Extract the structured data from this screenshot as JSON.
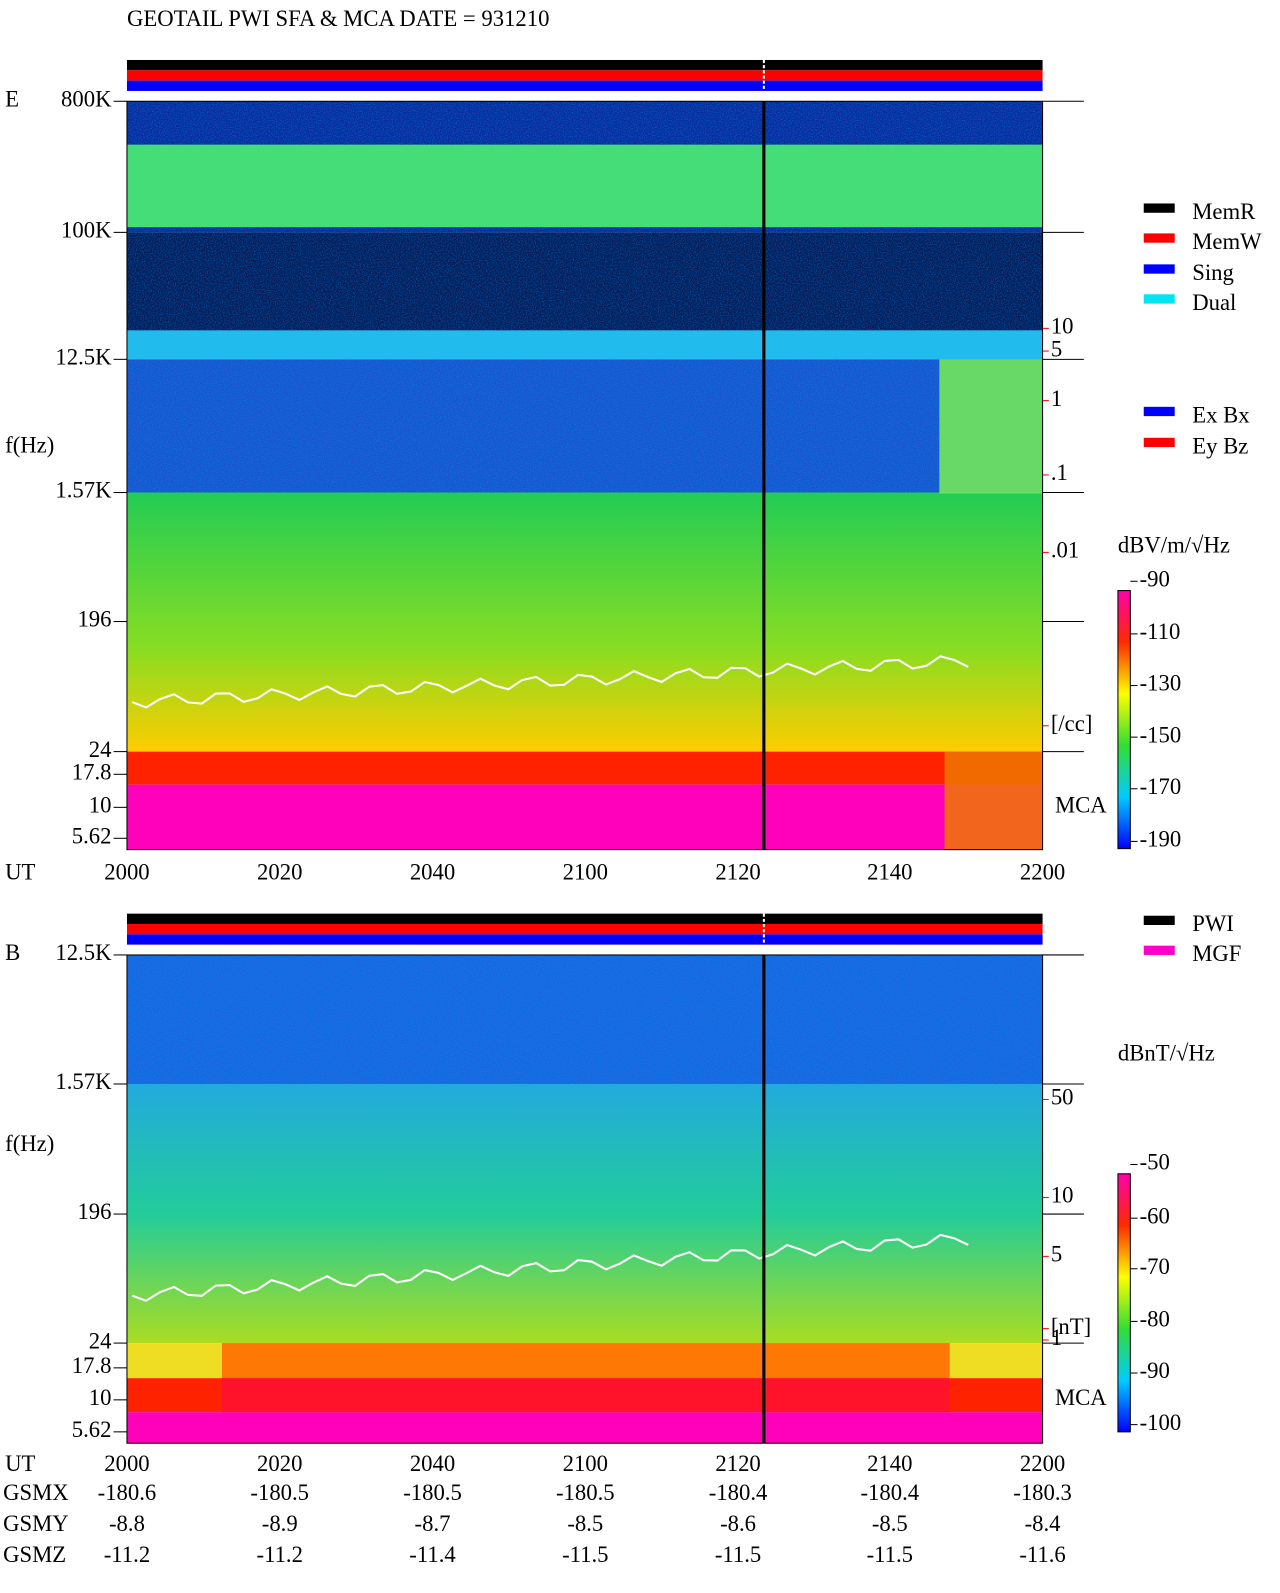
{
  "title": "GEOTAIL  PWI SFA & MCA   DATE = 931210",
  "panels": [
    {
      "label": "E",
      "axis_label": "f(Hz)",
      "time_label": "UT",
      "freq_ticks": [
        "800K",
        "100K",
        "12.5K",
        "1.57K",
        "196",
        "24",
        "17.8",
        "10",
        "5.62"
      ],
      "time_ticks": [
        "2000",
        "2020",
        "2040",
        "2100",
        "2120",
        "2140",
        "2200"
      ],
      "mca_label": "MCA",
      "legend": [
        {
          "name": "MemR",
          "color": "#000000"
        },
        {
          "name": "MemW",
          "color": "#ff0000"
        },
        {
          "name": "Sing",
          "color": "#0000ff"
        },
        {
          "name": "Dual",
          "color": "#00e5ee"
        },
        {
          "name": "Ex Bx",
          "color": "#0000ff"
        },
        {
          "name": "Ey Bz",
          "color": "#ff0000"
        }
      ],
      "unit": "dBV/m/√Hz",
      "colorbar_ticks": [
        "-90",
        "-110",
        "-130",
        "-150",
        "-170",
        "-190"
      ],
      "red_scale": [
        "10",
        "5",
        "1",
        ".1",
        ".01",
        "[/cc]"
      ]
    },
    {
      "label": "B",
      "axis_label": "f(Hz)",
      "time_label": "UT",
      "freq_ticks": [
        "12.5K",
        "1.57K",
        "196",
        "24",
        "17.8",
        "10",
        "5.62"
      ],
      "time_ticks": [
        "2000",
        "2020",
        "2040",
        "2100",
        "2120",
        "2140",
        "2200"
      ],
      "mca_label": "MCA",
      "legend": [
        {
          "name": "PWI",
          "color": "#000000"
        },
        {
          "name": "MGF",
          "color": "#ff00cc"
        }
      ],
      "unit": "dBnT/√Hz",
      "colorbar_ticks": [
        "-50",
        "-60",
        "-70",
        "-80",
        "-90",
        "-100"
      ],
      "red_scale": [
        "50",
        "10",
        "5",
        "1",
        "[nT]"
      ]
    }
  ],
  "orbit": [
    {
      "label": "GSMX",
      "values": [
        "-180.6",
        "-180.5",
        "-180.5",
        "-180.5",
        "-180.4",
        "-180.4",
        "-180.3"
      ]
    },
    {
      "label": "GSMY",
      "values": [
        "-8.8",
        "-8.9",
        "-8.7",
        "-8.5",
        "-8.6",
        "-8.5",
        "-8.4"
      ]
    },
    {
      "label": "GSMZ",
      "values": [
        "-11.2",
        "-11.2",
        "-11.4",
        "-11.5",
        "-11.5",
        "-11.5",
        "-11.6"
      ]
    }
  ]
}
